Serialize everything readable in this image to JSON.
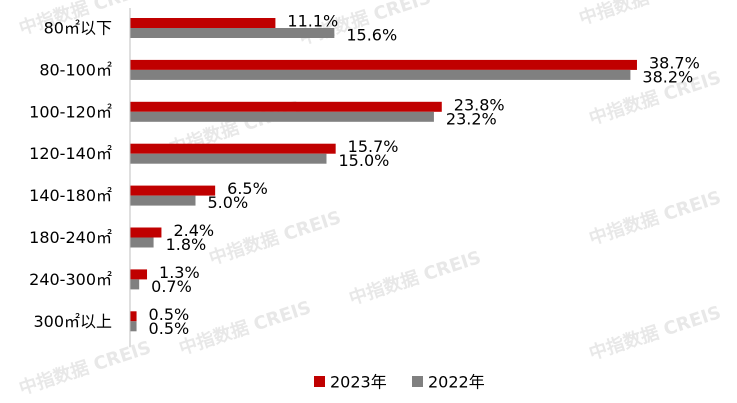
{
  "chart_data": {
    "type": "hbar",
    "watermark": "中指数据 CREIS",
    "categories": [
      "80㎡以下",
      "80-100㎡",
      "100-120㎡",
      "120-140㎡",
      "140-180㎡",
      "180-240㎡",
      "240-300㎡",
      "300㎡以上"
    ],
    "series": [
      {
        "name": "2023年",
        "color": "#c00000",
        "values": [
          11.1,
          38.7,
          23.8,
          15.7,
          6.5,
          2.4,
          1.3,
          0.5
        ],
        "value_labels": [
          "11.1%",
          "38.7%",
          "23.8%",
          "15.7%",
          "6.5%",
          "2.4%",
          "1.3%",
          "0.5%"
        ]
      },
      {
        "name": "2022年",
        "color": "#808080",
        "values": [
          15.6,
          38.2,
          23.2,
          15.0,
          5.0,
          1.8,
          0.7,
          0.5
        ],
        "value_labels": [
          "15.6%",
          "38.2%",
          "23.2%",
          "15.0%",
          "5.0%",
          "1.8%",
          "0.7%",
          "0.5%"
        ]
      }
    ],
    "xlim": [
      0,
      40
    ],
    "legend": "bottom"
  }
}
